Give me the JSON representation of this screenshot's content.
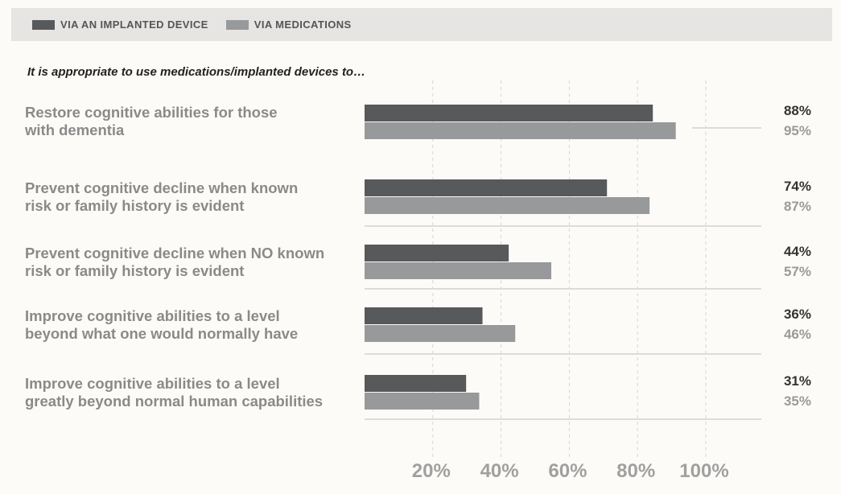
{
  "colors": {
    "implanted": "#58595b",
    "medications": "#98999b",
    "gridline": "#d5d5d5",
    "rowline": "#dcdcdc",
    "tick": "#a0a0a0",
    "background": "#fdfbf7"
  },
  "legend": [
    {
      "label": "VIA AN IMPLANTED DEVICE",
      "color": "#58595b"
    },
    {
      "label": "VIA MEDICATIONS",
      "color": "#98999b"
    }
  ],
  "subtitle": "It is appropriate to use medications/implanted devices to…",
  "chart_data": {
    "type": "bar",
    "orientation": "horizontal",
    "title": "",
    "subtitle": "It is appropriate to use medications/implanted devices to…",
    "xlabel": "",
    "ylabel": "",
    "xlim": [
      0,
      100
    ],
    "xticks": [
      20,
      40,
      60,
      80,
      100
    ],
    "xtick_labels": [
      "20%",
      "40%",
      "60%",
      "80%",
      "100%"
    ],
    "grid": true,
    "legend_position": "top",
    "categories": [
      "Restore cognitive abilities for those with dementia",
      "Prevent cognitive decline when known risk or family history is evident",
      "Prevent cognitive decline when NO known risk or family history is evident",
      "Improve cognitive abilities to a level beyond what one would normally have",
      "Improve cognitive abilities to a level greatly beyond normal human capabilities"
    ],
    "category_lines": [
      [
        "Restore cognitive abilities for those",
        "with dementia"
      ],
      [
        "Prevent cognitive decline when known",
        "risk or family history is evident"
      ],
      [
        "Prevent cognitive decline when NO known",
        "risk or family history is evident"
      ],
      [
        "Improve cognitive abilities to a level",
        "beyond what one would normally have"
      ],
      [
        "Improve cognitive abilities to a level",
        "greatly beyond normal human capabilities"
      ]
    ],
    "series": [
      {
        "name": "VIA AN IMPLANTED DEVICE",
        "values": [
          88,
          74,
          44,
          36,
          31
        ],
        "value_labels": [
          "88%",
          "74%",
          "44%",
          "36%",
          "31%"
        ]
      },
      {
        "name": "VIA MEDICATIONS",
        "values": [
          95,
          87,
          57,
          46,
          35
        ],
        "value_labels": [
          "95%",
          "87%",
          "57%",
          "46%",
          "35%"
        ]
      }
    ]
  }
}
